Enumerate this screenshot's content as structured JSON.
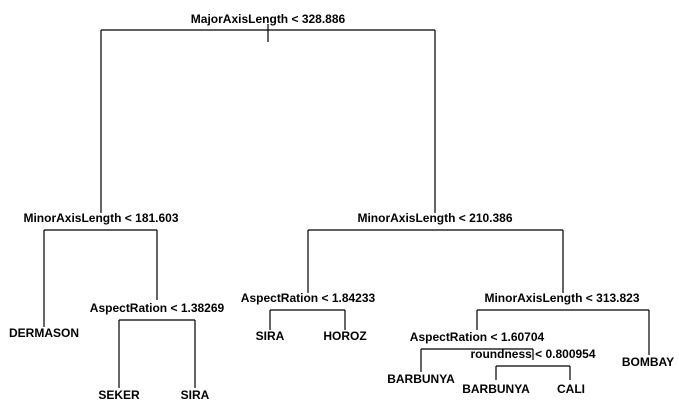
{
  "tree": {
    "splits": {
      "root": "MajorAxisLength < 328.886",
      "left": "MinorAxisLength < 181.603",
      "left_right": "AspectRation < 1.38269",
      "right": "MinorAxisLength < 210.386",
      "right_left": "AspectRation < 1.84233",
      "right_right": "MinorAxisLength < 313.823",
      "right_right_left": "AspectRation < 1.60704",
      "right_right_left_right": "roundness < 0.800954"
    },
    "leaves": {
      "dermason": "DERMASON",
      "seker": "SEKER",
      "sira_1": "SIRA",
      "sira_2": "SIRA",
      "horoz": "HOROZ",
      "barbunya_1": "BARBUNYA",
      "barbunya_2": "BARBUNYA",
      "cali": "CALI",
      "bombay": "BOMBAY"
    }
  }
}
